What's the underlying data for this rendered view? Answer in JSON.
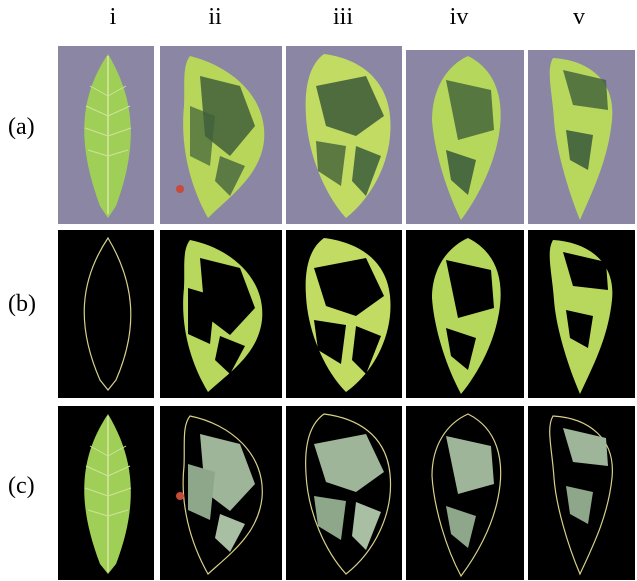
{
  "figure": {
    "columns": [
      "i",
      "ii",
      "iii",
      "iv",
      "v"
    ],
    "rows": [
      "(a)",
      "(b)",
      "(c)"
    ]
  },
  "colors": {
    "background_a": "#8a86a3",
    "background_bc": "#000000",
    "leaf_green": "#a7d65b",
    "leaf_yellow": "#d9e86a",
    "leaf_dark": "#3f5f3a",
    "outline": "#d8d08a"
  }
}
